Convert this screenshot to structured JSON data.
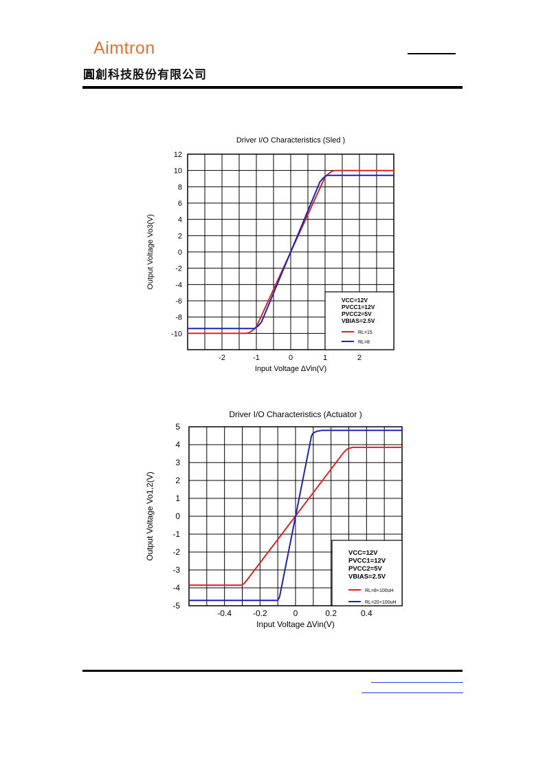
{
  "header": {
    "logo_text": "Aimtron",
    "company_cn": "圓創科技股份有限公司"
  },
  "colors": {
    "red": "#e02020",
    "blue": "#1a22b8",
    "logo_orange": "#e8702a"
  },
  "chart_data": [
    {
      "type": "line",
      "title": "Driver I/O Characteristics (Sled )",
      "xlabel": "Input Voltage ∆Vin(V)",
      "ylabel": "Output Voltage Vo3(V)",
      "xlim": [
        -3,
        3
      ],
      "ylim": [
        -12,
        12
      ],
      "xticks": [
        -2,
        -1,
        0,
        1,
        2
      ],
      "yticks": [
        12,
        10,
        8,
        6,
        4,
        2,
        0,
        -2,
        -4,
        -6,
        -8,
        -10
      ],
      "grid": true,
      "legend_placement": "bottom-right",
      "conditions": [
        "VCC=12V",
        "PVCC1=12V",
        "PVCC2=5V",
        "VBIAS=2.5V"
      ],
      "series": [
        {
          "name": "RL=15",
          "color": "#e02020",
          "x": [
            -3,
            -1.3,
            -1.2,
            -1.1,
            -1.0,
            1.0,
            1.1,
            1.2,
            1.3,
            3
          ],
          "y": [
            -10,
            -10,
            -9.9,
            -9.6,
            -9.2,
            9.2,
            9.6,
            9.9,
            10,
            10
          ]
        },
        {
          "name": "RL=8",
          "color": "#1a22b8",
          "x": [
            -3,
            -1.05,
            -0.95,
            -0.85,
            0.85,
            0.95,
            1.05,
            3
          ],
          "y": [
            -9.4,
            -9.4,
            -9.1,
            -8.6,
            8.6,
            9.1,
            9.4,
            9.4
          ]
        }
      ]
    },
    {
      "type": "line",
      "title": "Driver I/O Characteristics (Actuator )",
      "xlabel": "Input Voltage ∆Vin(V)",
      "ylabel": "Output Voltage Vo1,2(V)",
      "xlim": [
        -0.6,
        0.6
      ],
      "ylim": [
        -5,
        5
      ],
      "xticks": [
        -0.4,
        -0.2,
        0,
        0.2,
        0.4
      ],
      "yticks": [
        5,
        4,
        3,
        2,
        1,
        0,
        -1,
        -2,
        -3,
        -4,
        -5
      ],
      "grid": true,
      "legend_placement": "bottom-right",
      "conditions": [
        "VCC=12V",
        "PVCC1=12V",
        "PVCC2=5V",
        "VBIAS=2.5V"
      ],
      "series": [
        {
          "name": "RL=8+100uH",
          "color": "#e02020",
          "x": [
            -0.6,
            -0.3,
            -0.28,
            0.27,
            0.29,
            0.32,
            0.6
          ],
          "y": [
            -3.85,
            -3.85,
            -3.65,
            3.55,
            3.75,
            3.85,
            3.85
          ]
        },
        {
          "name": "RL=20+100uH",
          "color": "#1a22b8",
          "x": [
            -0.6,
            -0.1,
            -0.09,
            0.09,
            0.1,
            0.12,
            0.15,
            0.6
          ],
          "y": [
            -4.7,
            -4.7,
            -4.5,
            4.5,
            4.65,
            4.75,
            4.8,
            4.8
          ]
        }
      ]
    }
  ]
}
